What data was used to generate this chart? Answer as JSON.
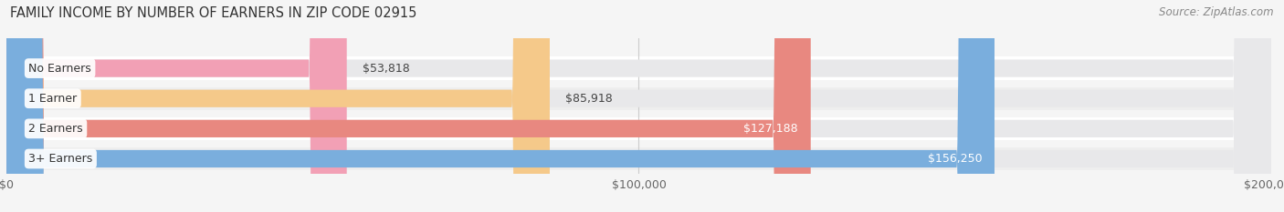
{
  "title": "FAMILY INCOME BY NUMBER OF EARNERS IN ZIP CODE 02915",
  "source": "Source: ZipAtlas.com",
  "categories": [
    "No Earners",
    "1 Earner",
    "2 Earners",
    "3+ Earners"
  ],
  "values": [
    53818,
    85918,
    127188,
    156250
  ],
  "bar_colors": [
    "#f2a0b5",
    "#f5c98a",
    "#e88880",
    "#7aaedd"
  ],
  "bar_bg_color": "#e8e8ea",
  "xmax": 200000,
  "background_color": "#f5f5f5",
  "title_fontsize": 10.5,
  "source_fontsize": 8.5,
  "value_label_inside": [
    false,
    false,
    true,
    true
  ],
  "value_label_colors_outside": [
    "#555555",
    "#555555",
    "#ffffff",
    "#ffffff"
  ],
  "stripe_color": "#eeeeee"
}
